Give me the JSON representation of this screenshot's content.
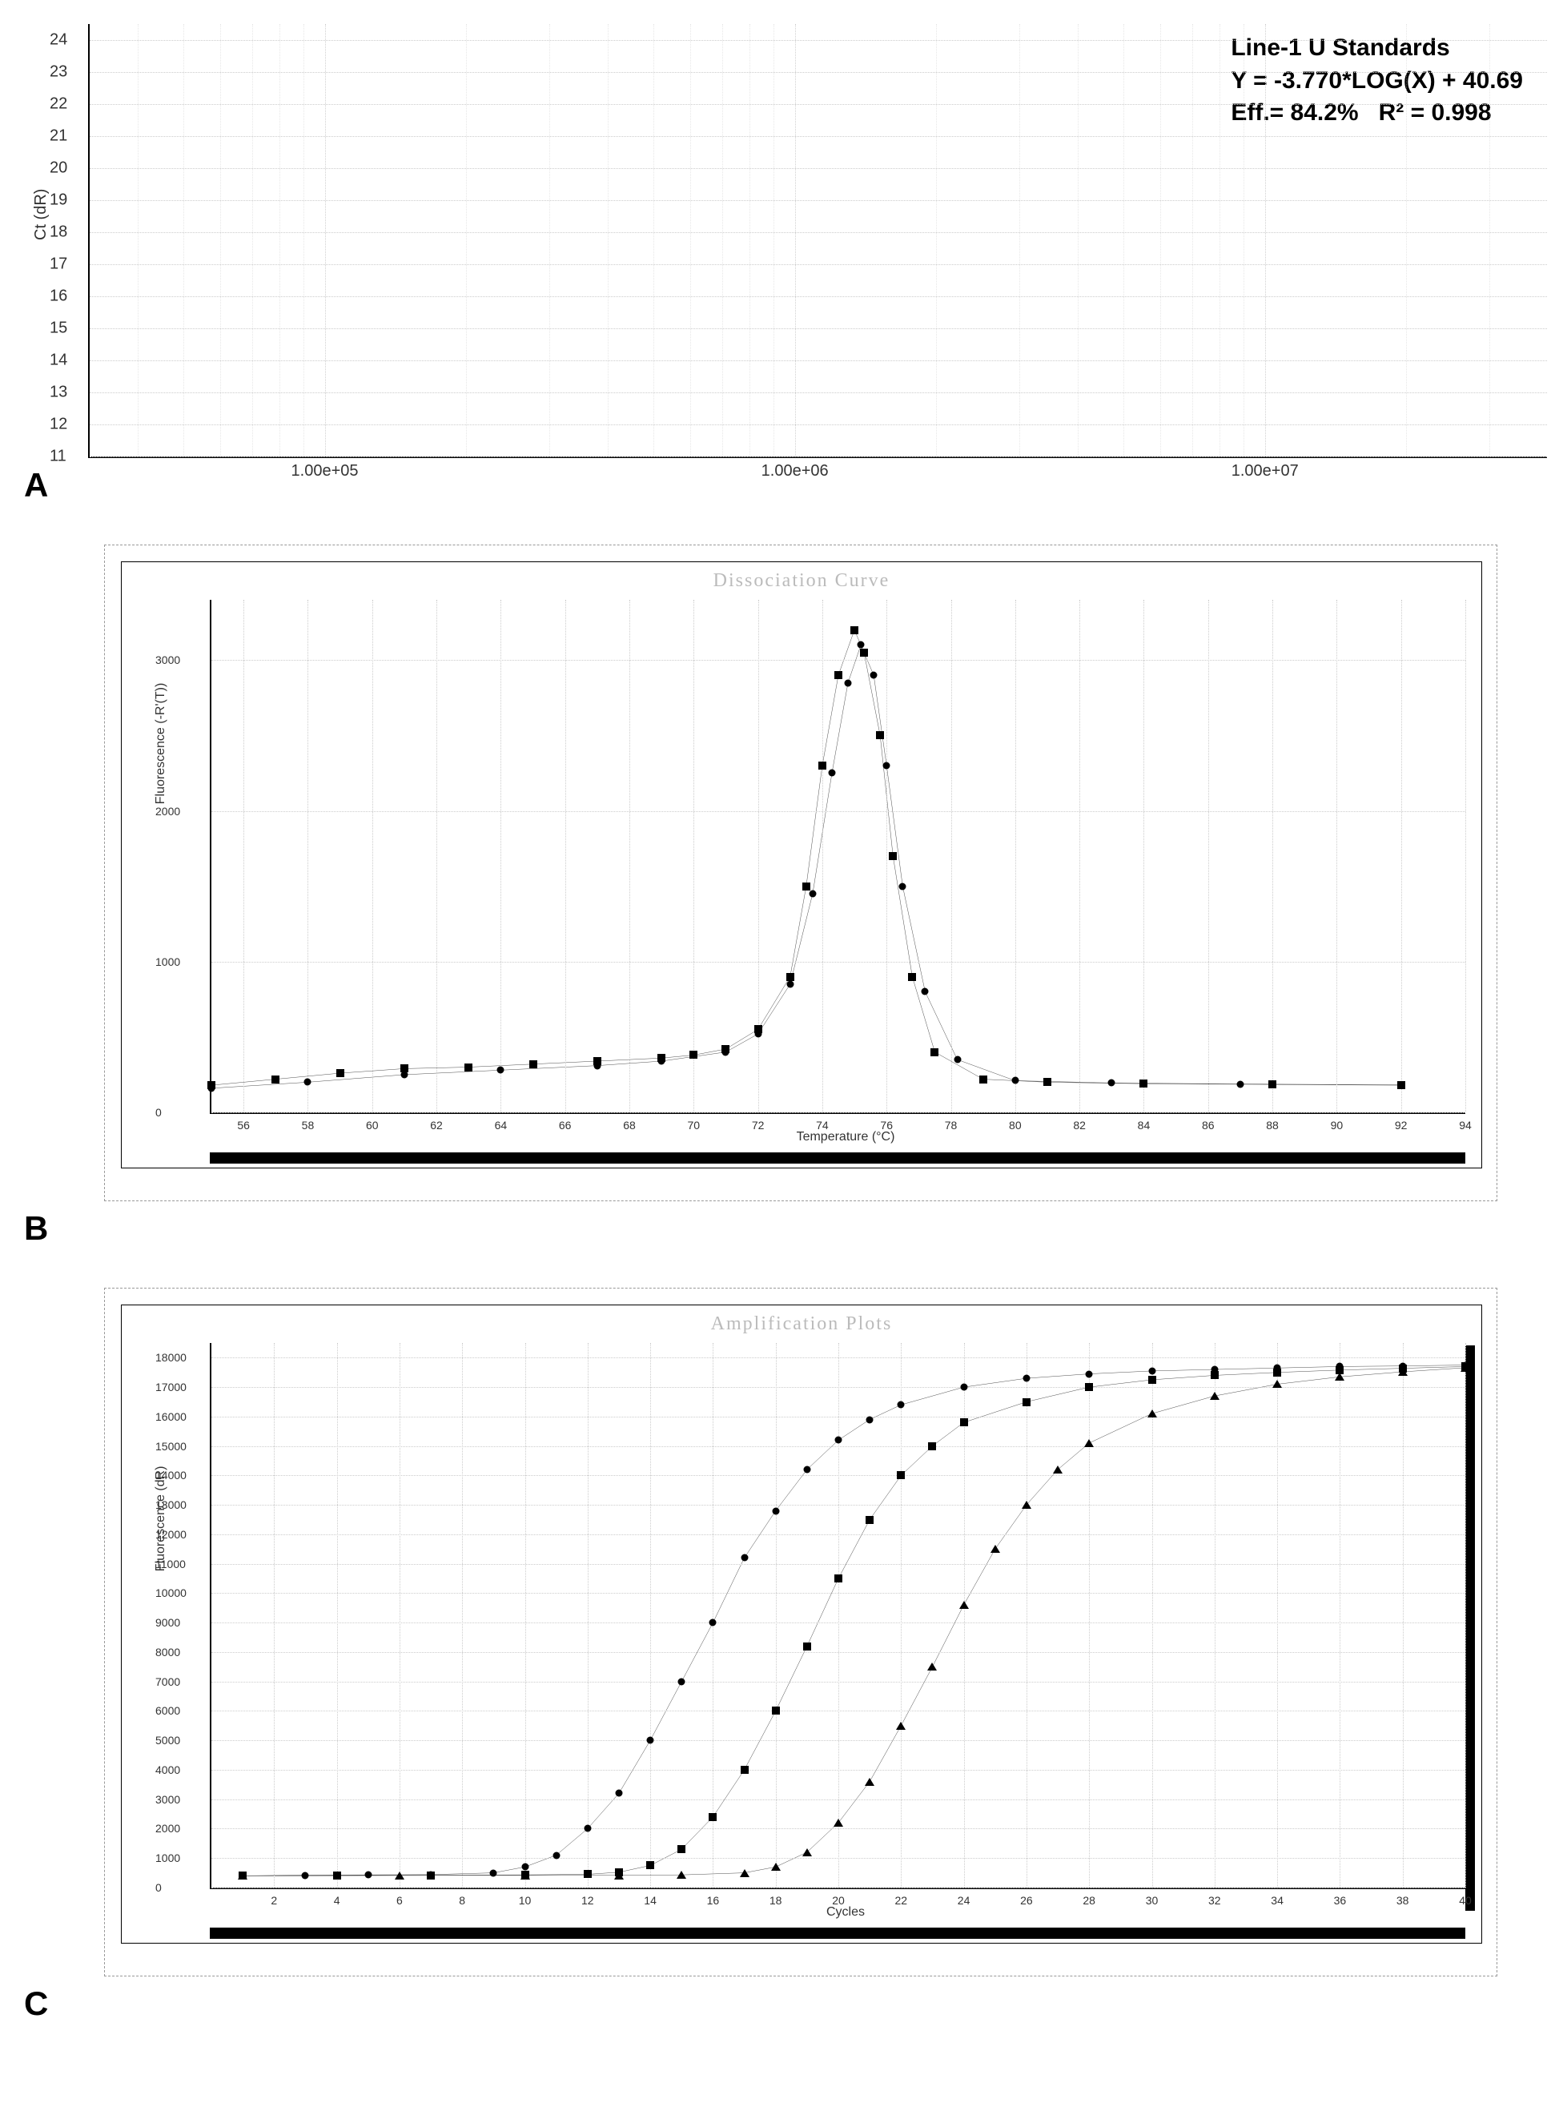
{
  "panel_a": {
    "label": "A",
    "ylabel": "Ct (dR)",
    "yticks": [
      11,
      12,
      13,
      14,
      15,
      16,
      17,
      18,
      19,
      20,
      21,
      22,
      23,
      24
    ],
    "xticks": [
      {
        "value": 100000.0,
        "label": "1.00e+05"
      },
      {
        "value": 1000000.0,
        "label": "1.00e+06"
      },
      {
        "value": 10000000.0,
        "label": "1.00e+07"
      }
    ],
    "x_log_range": [
      4.5,
      7.6
    ],
    "y_range": [
      11,
      24.5
    ],
    "annotation": {
      "line1": "Line-1 U Standards",
      "line2": "Y = -3.770*LOG(X) + 40.69",
      "line3_left": "Eff.= 84.2%",
      "line3_right": "R² = 0.998"
    },
    "grid_color": "#cccccc",
    "background": "#ffffff"
  },
  "panel_b": {
    "label": "B",
    "title": "Dissociation Curve",
    "ylabel": "Fluorescence (-R'(T))",
    "xlabel": "Temperature (°C)",
    "x_range": [
      55,
      94
    ],
    "y_range": [
      0,
      3400
    ],
    "xticks": [
      56,
      58,
      60,
      62,
      64,
      66,
      68,
      70,
      72,
      74,
      76,
      78,
      80,
      82,
      84,
      86,
      88,
      90,
      92,
      94
    ],
    "yticks": [
      0,
      1000,
      2000,
      3000
    ],
    "series": [
      {
        "marker": "square",
        "color": "#000000",
        "points": [
          [
            55,
            180
          ],
          [
            57,
            220
          ],
          [
            59,
            260
          ],
          [
            61,
            290
          ],
          [
            63,
            300
          ],
          [
            65,
            320
          ],
          [
            67,
            340
          ],
          [
            69,
            360
          ],
          [
            70,
            380
          ],
          [
            71,
            420
          ],
          [
            72,
            550
          ],
          [
            73,
            900
          ],
          [
            73.5,
            1500
          ],
          [
            74,
            2300
          ],
          [
            74.5,
            2900
          ],
          [
            75,
            3200
          ],
          [
            75.3,
            3050
          ],
          [
            75.8,
            2500
          ],
          [
            76.2,
            1700
          ],
          [
            76.8,
            900
          ],
          [
            77.5,
            400
          ],
          [
            79,
            220
          ],
          [
            81,
            200
          ],
          [
            84,
            190
          ],
          [
            88,
            185
          ],
          [
            92,
            180
          ]
        ]
      },
      {
        "marker": "circle",
        "color": "#000000",
        "points": [
          [
            55,
            160
          ],
          [
            58,
            200
          ],
          [
            61,
            250
          ],
          [
            64,
            280
          ],
          [
            67,
            310
          ],
          [
            69,
            340
          ],
          [
            71,
            400
          ],
          [
            72,
            520
          ],
          [
            73,
            850
          ],
          [
            73.7,
            1450
          ],
          [
            74.3,
            2250
          ],
          [
            74.8,
            2850
          ],
          [
            75.2,
            3100
          ],
          [
            75.6,
            2900
          ],
          [
            76.0,
            2300
          ],
          [
            76.5,
            1500
          ],
          [
            77.2,
            800
          ],
          [
            78.2,
            350
          ],
          [
            80,
            210
          ],
          [
            83,
            195
          ],
          [
            87,
            188
          ],
          [
            92,
            182
          ]
        ]
      }
    ]
  },
  "panel_c": {
    "label": "C",
    "title": "Amplification Plots",
    "ylabel": "Fluorescence (dR)",
    "xlabel": "Cycles",
    "x_range": [
      0,
      40
    ],
    "y_range": [
      0,
      18500
    ],
    "xticks": [
      2,
      4,
      6,
      8,
      10,
      12,
      14,
      16,
      18,
      20,
      22,
      24,
      26,
      28,
      30,
      32,
      34,
      36,
      38,
      40
    ],
    "yticks": [
      0,
      1000,
      2000,
      3000,
      4000,
      5000,
      6000,
      7000,
      8000,
      9000,
      10000,
      11000,
      12000,
      13000,
      14000,
      15000,
      16000,
      17000,
      18000
    ],
    "series": [
      {
        "marker": "circle",
        "color": "#000000",
        "points": [
          [
            1,
            400
          ],
          [
            3,
            420
          ],
          [
            5,
            430
          ],
          [
            7,
            440
          ],
          [
            9,
            500
          ],
          [
            10,
            700
          ],
          [
            11,
            1100
          ],
          [
            12,
            2000
          ],
          [
            13,
            3200
          ],
          [
            14,
            5000
          ],
          [
            15,
            7000
          ],
          [
            16,
            9000
          ],
          [
            17,
            11200
          ],
          [
            18,
            12800
          ],
          [
            19,
            14200
          ],
          [
            20,
            15200
          ],
          [
            21,
            15900
          ],
          [
            22,
            16400
          ],
          [
            24,
            17000
          ],
          [
            26,
            17300
          ],
          [
            28,
            17450
          ],
          [
            30,
            17550
          ],
          [
            32,
            17600
          ],
          [
            34,
            17650
          ],
          [
            36,
            17700
          ],
          [
            38,
            17720
          ],
          [
            40,
            17750
          ]
        ]
      },
      {
        "marker": "square",
        "color": "#000000",
        "points": [
          [
            1,
            400
          ],
          [
            4,
            410
          ],
          [
            7,
            420
          ],
          [
            10,
            430
          ],
          [
            12,
            450
          ],
          [
            13,
            520
          ],
          [
            14,
            750
          ],
          [
            15,
            1300
          ],
          [
            16,
            2400
          ],
          [
            17,
            4000
          ],
          [
            18,
            6000
          ],
          [
            19,
            8200
          ],
          [
            20,
            10500
          ],
          [
            21,
            12500
          ],
          [
            22,
            14000
          ],
          [
            23,
            15000
          ],
          [
            24,
            15800
          ],
          [
            26,
            16500
          ],
          [
            28,
            17000
          ],
          [
            30,
            17250
          ],
          [
            32,
            17400
          ],
          [
            34,
            17500
          ],
          [
            36,
            17580
          ],
          [
            38,
            17640
          ],
          [
            40,
            17700
          ]
        ]
      },
      {
        "marker": "triangle",
        "color": "#000000",
        "points": [
          [
            1,
            400
          ],
          [
            6,
            410
          ],
          [
            10,
            415
          ],
          [
            13,
            420
          ],
          [
            15,
            430
          ],
          [
            17,
            500
          ],
          [
            18,
            700
          ],
          [
            19,
            1200
          ],
          [
            20,
            2200
          ],
          [
            21,
            3600
          ],
          [
            22,
            5500
          ],
          [
            23,
            7500
          ],
          [
            24,
            9600
          ],
          [
            25,
            11500
          ],
          [
            26,
            13000
          ],
          [
            27,
            14200
          ],
          [
            28,
            15100
          ],
          [
            30,
            16100
          ],
          [
            32,
            16700
          ],
          [
            34,
            17100
          ],
          [
            36,
            17350
          ],
          [
            38,
            17520
          ],
          [
            40,
            17660
          ]
        ]
      }
    ]
  }
}
